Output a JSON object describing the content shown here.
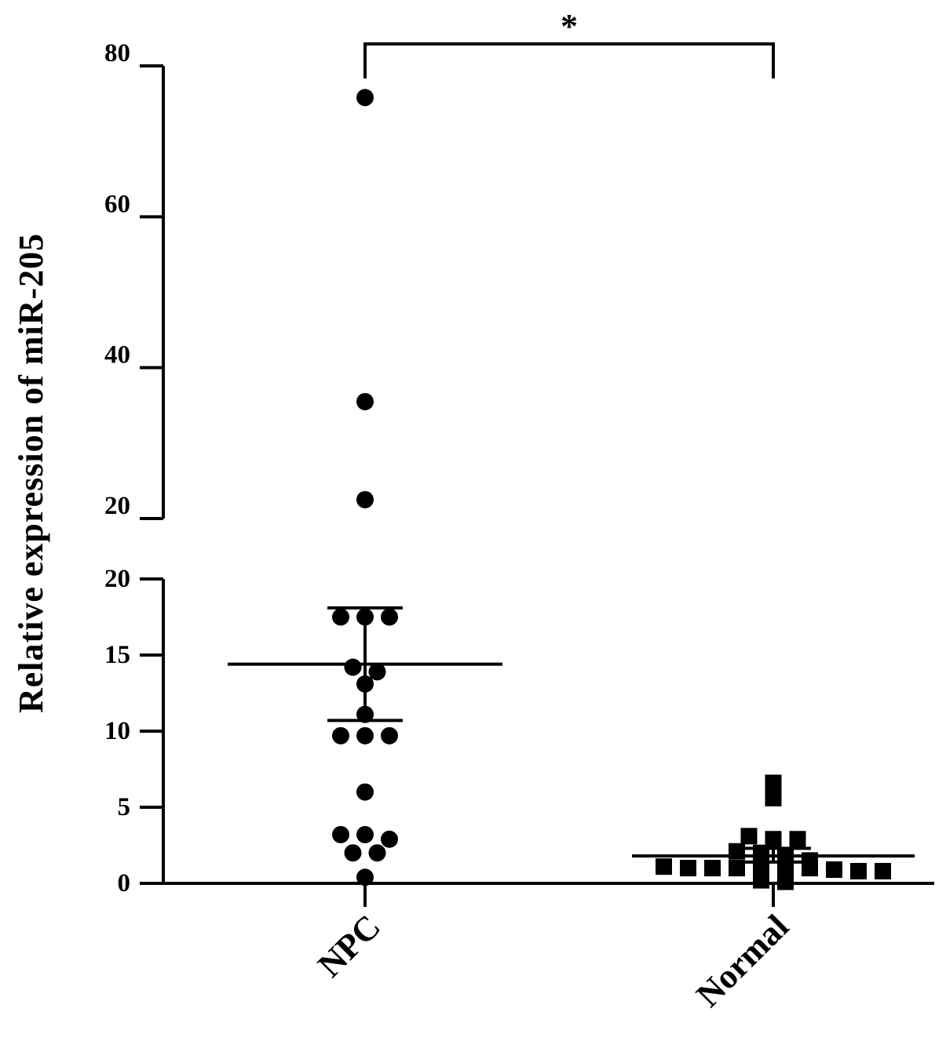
{
  "chart_data": {
    "type": "scatter",
    "title": "",
    "xlabel": "",
    "ylabel": "Relative expression of miR-205",
    "categories": [
      "NPC",
      "Normal"
    ],
    "y_axis_broken": true,
    "y_lower_segment": {
      "range": [
        0,
        20
      ],
      "ticks": [
        0,
        5,
        10,
        15,
        20
      ]
    },
    "y_upper_segment": {
      "range": [
        20,
        80
      ],
      "ticks": [
        20,
        40,
        60,
        80
      ]
    },
    "grid": false,
    "legend": "none",
    "series": [
      {
        "category": "NPC",
        "marker": "circle",
        "values": [
          75.8,
          35.5,
          22.5,
          17.5,
          17.5,
          17.5,
          14.2,
          13.9,
          13.1,
          11.1,
          9.7,
          9.7,
          9.7,
          6.0,
          3.2,
          3.2,
          2.9,
          2.0,
          2.0,
          0.4
        ],
        "mean": 14.4,
        "error_upper": 18.1,
        "error_lower": 10.7
      },
      {
        "category": "Normal",
        "marker": "square",
        "values": [
          6.6,
          5.6,
          3.1,
          2.9,
          2.9,
          2.1,
          2.0,
          1.7,
          1.5,
          1.1,
          1.0,
          1.0,
          1.0,
          1.0,
          1.0,
          1.0,
          0.9,
          0.8,
          0.8,
          0.2,
          0.1
        ],
        "mean": 1.8,
        "error_upper": 2.3,
        "error_lower": 1.4
      }
    ],
    "annotations": [
      {
        "type": "significance_bracket",
        "between": [
          "NPC",
          "Normal"
        ],
        "label": "*"
      }
    ],
    "color": "#000000"
  }
}
